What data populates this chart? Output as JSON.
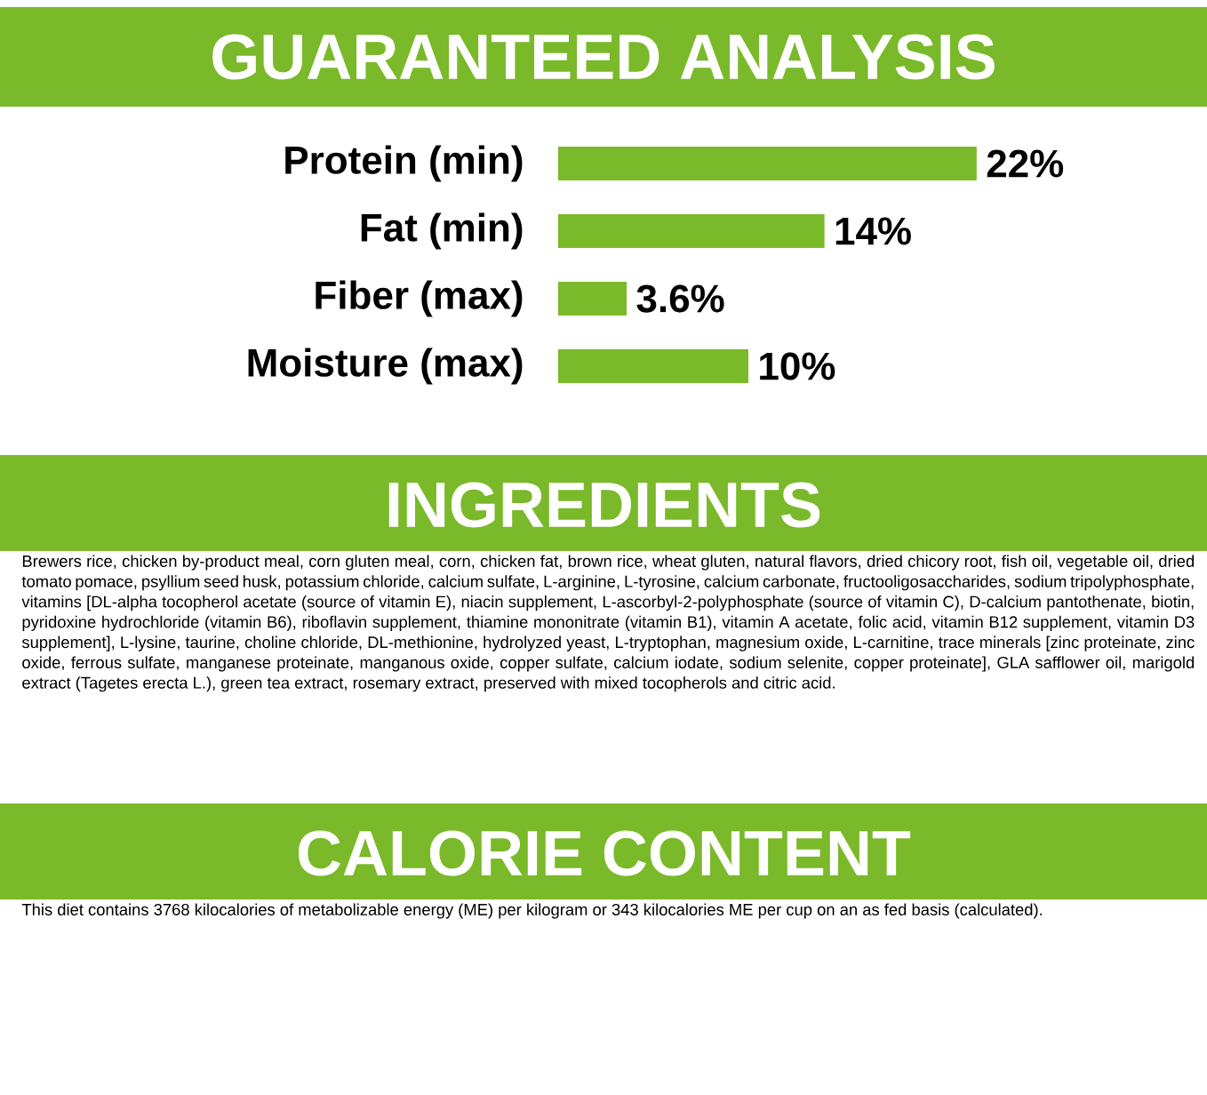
{
  "chart_data": {
    "type": "bar",
    "orientation": "horizontal",
    "title": "GUARANTEED ANALYSIS",
    "categories": [
      "Protein (min)",
      "Fat (min)",
      "Fiber (max)",
      "Moisture (max)"
    ],
    "values": [
      22,
      14,
      3.6,
      10
    ],
    "value_labels": [
      "22%",
      "14%",
      "3.6%",
      "10%"
    ],
    "color": "#7ab929",
    "annotations": [
      "INGREDIENTS",
      "Brewers rice, chicken by-product meal, corn gluten meal, corn, chicken fat, brown rice, wheat gluten, natural flavors, dried chicory root, fish oil, vegetable oil, dried tomato pomace, psyllium seed husk, potassium chloride, calcium sulfate, L-arginine, L-tyrosine, calcium carbonate, fructooligosaccharides, sodium tripolyphosphate, vitamins [DL-alpha tocopherol acetate (source of vitamin E), niacin supplement, L-ascorbyl-2-polyphosphate (source of vitamin C), D-calcium pantothenate, biotin, pyridoxine hydrochloride (vitamin B6), riboflavin supplement, thiamine mononitrate (vitamin B1), vitamin A acetate, folic acid, vitamin B12 supplement, vitamin D3 supplement], L-lysine, taurine, choline chloride, DL-methionine, hydrolyzed yeast, L-tryptophan, magnesium oxide, L-carnitine, trace minerals [zinc proteinate, zinc oxide, ferrous sulfate, manganese proteinate, manganous oxide, copper sulfate, calcium iodate, sodium selenite, copper proteinate], GLA safflower oil, marigold extract (Tagetes erecta L.), green tea extract, rosemary extract, preserved with mixed tocopherols and citric acid.",
      "CALORIE CONTENT",
      "This diet contains 3768 kilocalories of metabolizable energy (ME) per kilogram or 343 kilocalories ME per cup on an as fed basis (calculated)."
    ]
  }
}
